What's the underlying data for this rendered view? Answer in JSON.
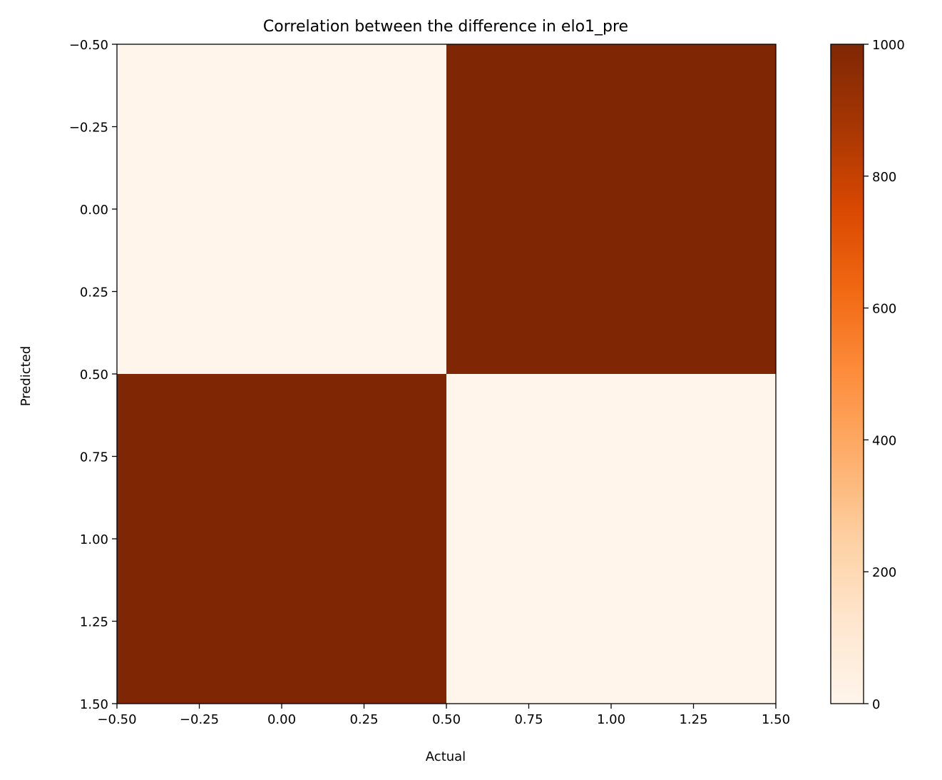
{
  "chart_data": {
    "type": "heatmap",
    "title": "Correlation between the difference in elo1_pre",
    "xlabel": "Actual",
    "ylabel": "Predicted",
    "xlim": [
      -0.5,
      1.5
    ],
    "ylim": [
      1.5,
      -0.5
    ],
    "x_ticks": [
      "−0.50",
      "−0.25",
      "0.00",
      "0.25",
      "0.50",
      "0.75",
      "1.00",
      "1.25",
      "1.50"
    ],
    "y_ticks": [
      "−0.50",
      "−0.25",
      "0.00",
      "0.25",
      "0.50",
      "0.75",
      "1.00",
      "1.25",
      "1.50"
    ],
    "x_categories": [
      0,
      1
    ],
    "y_categories": [
      0,
      1
    ],
    "values": [
      [
        0,
        1000
      ],
      [
        1000,
        0
      ]
    ],
    "colormap": "Oranges",
    "colorbar": {
      "range": [
        0,
        1000
      ],
      "ticks": [
        "0",
        "200",
        "400",
        "600",
        "800",
        "1000"
      ],
      "colors": [
        "#fff5eb",
        "#fee6ce",
        "#fdd0a2",
        "#fdae6b",
        "#fd8d3c",
        "#f16913",
        "#d94801",
        "#a63603",
        "#7f2704"
      ]
    },
    "grid": false
  }
}
